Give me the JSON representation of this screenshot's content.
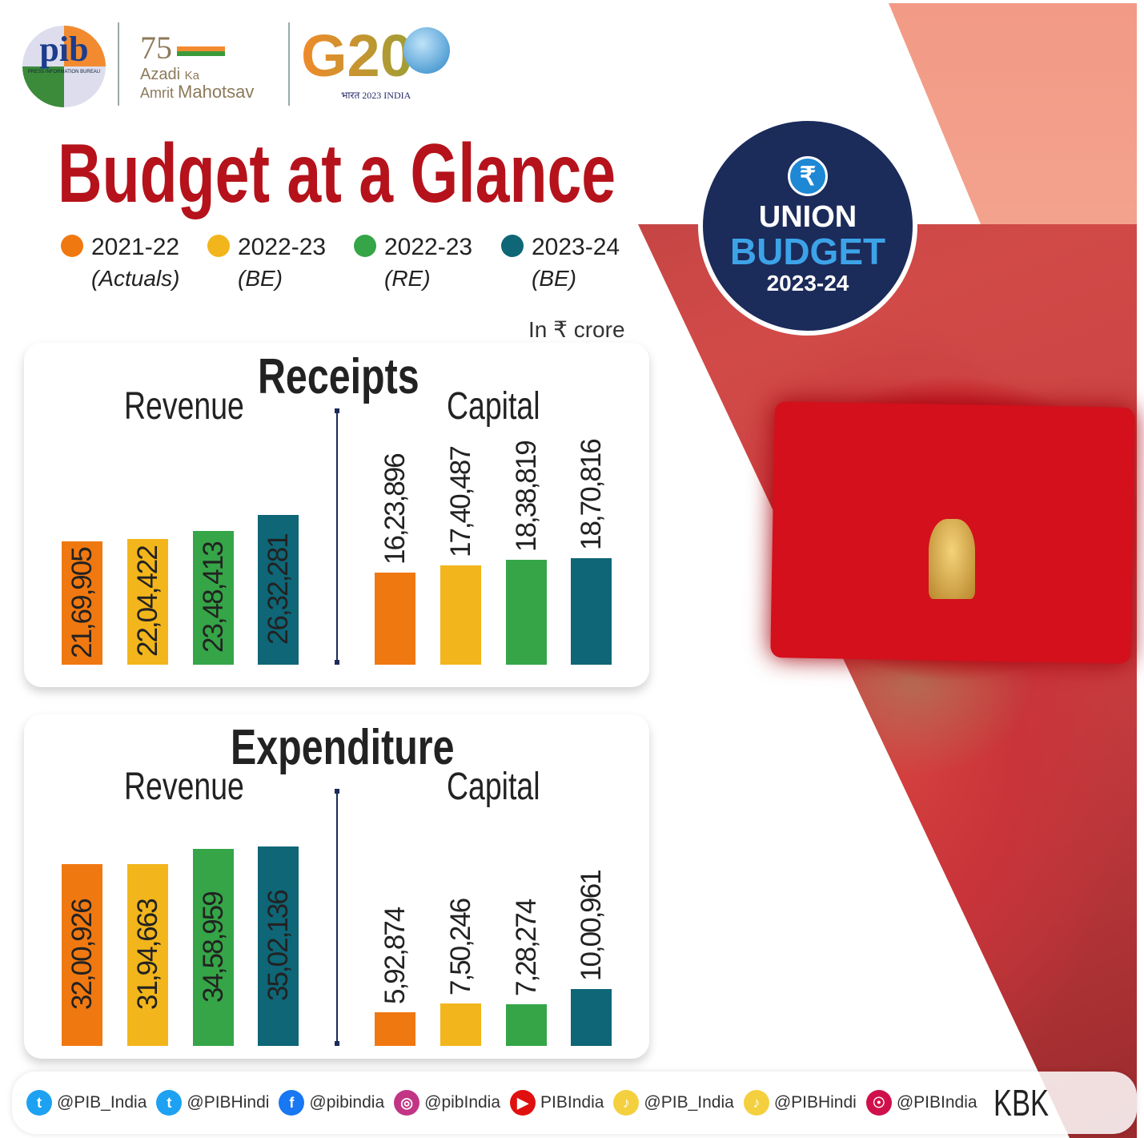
{
  "logos": {
    "pib": "pib",
    "pib_sub": "PRESS INFORMATION BUREAU",
    "azadi_line1": "Azadi",
    "azadi_ka": "Ka",
    "azadi_line2": "Amrit",
    "azadi_mahotsav": "Mahotsav",
    "g20": "G20",
    "g20_sub": "भारत 2023 INDIA"
  },
  "title": "Budget at a Glance",
  "legend": [
    {
      "year": "2021-22",
      "sub": "(Actuals)",
      "color": "#f07810"
    },
    {
      "year": "2022-23",
      "sub": "(BE)",
      "color": "#f2b51b"
    },
    {
      "year": "2022-23",
      "sub": "(RE)",
      "color": "#35a547"
    },
    {
      "year": "2023-24",
      "sub": "(BE)",
      "color": "#0e6677"
    }
  ],
  "unit": "In ₹ crore",
  "badge": {
    "symbol": "₹",
    "line1": "UNION",
    "line2": "BUDGET",
    "line3": "2023-24"
  },
  "chart_data": [
    {
      "type": "bar",
      "title": "Receipts",
      "groups": [
        {
          "name": "Revenue",
          "values": [
            2169905,
            2204422,
            2348413,
            2632281
          ],
          "labels": [
            "21,69,905",
            "22,04,422",
            "23,48,413",
            "26,32,281"
          ]
        },
        {
          "name": "Capital",
          "values": [
            1623896,
            1740487,
            1838819,
            1870816
          ],
          "labels": [
            "16,23,896",
            "17,40,487",
            "18,38,819",
            "18,70,816"
          ]
        }
      ],
      "series": [
        "2021-22 (Actuals)",
        "2022-23 (BE)",
        "2022-23 (RE)",
        "2023-24 (BE)"
      ],
      "ylabel": "₹ crore"
    },
    {
      "type": "bar",
      "title": "Expenditure",
      "groups": [
        {
          "name": "Revenue",
          "values": [
            3200926,
            3194663,
            3458959,
            3502136
          ],
          "labels": [
            "32,00,926",
            "31,94,663",
            "34,58,959",
            "35,02,136"
          ]
        },
        {
          "name": "Capital",
          "values": [
            592874,
            750246,
            728274,
            1000961
          ],
          "labels": [
            "5,92,874",
            "7,50,246",
            "7,28,274",
            "10,00,961"
          ]
        }
      ],
      "series": [
        "2021-22 (Actuals)",
        "2022-23 (BE)",
        "2022-23 (RE)",
        "2023-24 (BE)"
      ],
      "ylabel": "₹ crore"
    }
  ],
  "footer": {
    "items": [
      {
        "icon": "twitter",
        "label": "@PIB_India",
        "color": "#1da1f2",
        "glyph": "t"
      },
      {
        "icon": "twitter",
        "label": "@PIBHindi",
        "color": "#1da1f2",
        "glyph": "t"
      },
      {
        "icon": "facebook",
        "label": "@pibindia",
        "color": "#1877f2",
        "glyph": "f"
      },
      {
        "icon": "instagram",
        "label": "@pibIndia",
        "color": "#c13584",
        "glyph": "◎"
      },
      {
        "icon": "youtube",
        "label": "PIBIndia",
        "color": "#e01010",
        "glyph": "▶"
      },
      {
        "icon": "koo",
        "label": "@PIB_India",
        "color": "#f4d03f",
        "glyph": "♪"
      },
      {
        "icon": "koo",
        "label": "@PIBHindi",
        "color": "#f4d03f",
        "glyph": "♪"
      },
      {
        "icon": "sharechat",
        "label": "@PIBIndia",
        "color": "#d0104c",
        "glyph": "☉"
      }
    ],
    "signature": "KBK"
  }
}
